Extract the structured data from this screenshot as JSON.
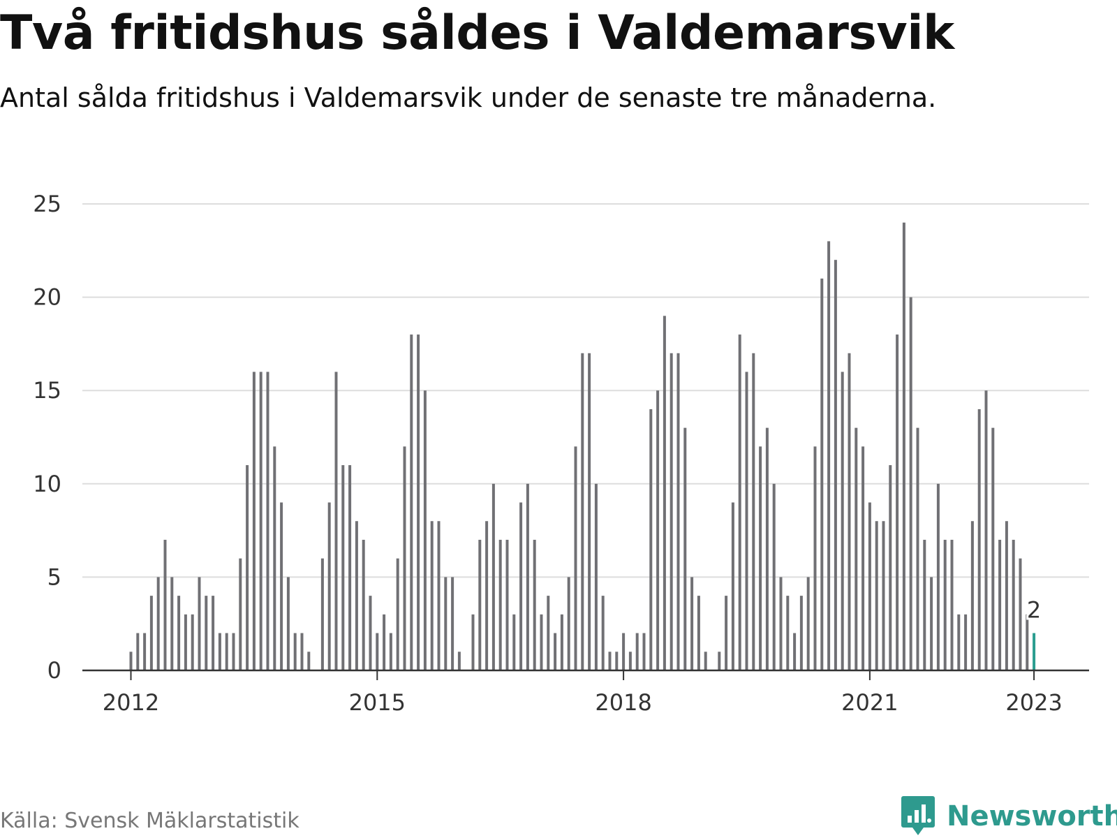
{
  "header": {
    "title": "Två fritidshus såldes i Valdemarsvik",
    "subtitle": "Antal sålda fritidshus i Valdemarsvik under de senaste tre månaderna."
  },
  "footer": {
    "source": "Källa: Svensk Mäklarstatistik",
    "brand": "Newsworthy"
  },
  "colors": {
    "bar": "#707074",
    "highlight": "#2a9d8f",
    "grid": "#dddddd",
    "axis": "#333333",
    "brand": "#2e9a8e"
  },
  "icons": {
    "brand_logo": "newsworthy-logo-icon"
  },
  "chart_data": {
    "type": "bar",
    "start": "2012-01",
    "frequency": "monthly",
    "values": [
      1,
      2,
      2,
      4,
      5,
      7,
      5,
      4,
      3,
      3,
      5,
      4,
      4,
      2,
      2,
      2,
      6,
      11,
      16,
      16,
      16,
      12,
      9,
      5,
      2,
      2,
      1,
      0,
      6,
      9,
      16,
      11,
      11,
      8,
      7,
      4,
      2,
      3,
      2,
      6,
      12,
      18,
      18,
      15,
      8,
      8,
      5,
      5,
      1,
      0,
      3,
      7,
      8,
      10,
      7,
      7,
      3,
      9,
      10,
      7,
      3,
      4,
      2,
      3,
      5,
      12,
      17,
      17,
      10,
      4,
      1,
      1,
      2,
      1,
      2,
      2,
      14,
      15,
      19,
      17,
      17,
      13,
      5,
      4,
      1,
      0,
      1,
      4,
      9,
      18,
      16,
      17,
      12,
      13,
      10,
      5,
      4,
      2,
      4,
      5,
      12,
      21,
      23,
      22,
      16,
      17,
      13,
      12,
      9,
      8,
      8,
      11,
      18,
      24,
      20,
      13,
      7,
      5,
      10,
      7,
      7,
      3,
      3,
      8,
      14,
      15,
      13,
      7,
      8,
      7,
      6,
      3,
      2
    ],
    "highlight_index": 132,
    "highlight_label": "2",
    "ylim": [
      0,
      25
    ],
    "yticks": [
      0,
      5,
      10,
      15,
      20,
      25
    ],
    "xticks": [
      {
        "label": "2012",
        "index": 0
      },
      {
        "label": "2015",
        "index": 36
      },
      {
        "label": "2018",
        "index": 72
      },
      {
        "label": "2021",
        "index": 108
      },
      {
        "label": "2023",
        "index": 132
      }
    ],
    "grid": true,
    "xlabel": "",
    "ylabel": ""
  }
}
